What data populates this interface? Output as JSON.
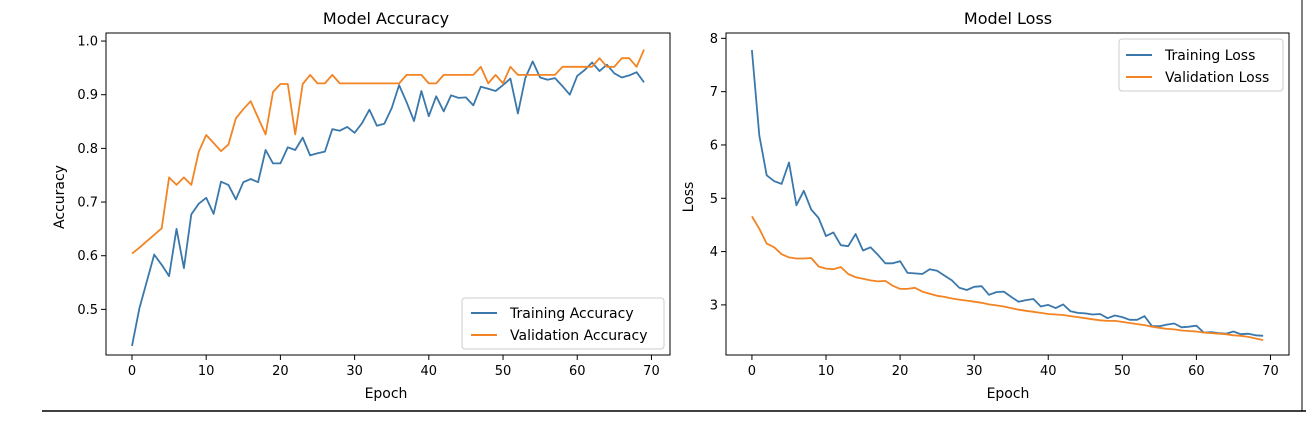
{
  "colors": {
    "training": "#3a78ab",
    "validation": "#f28424"
  },
  "chart_data": [
    {
      "type": "line",
      "title": "Model Accuracy",
      "xlabel": "Epoch",
      "ylabel": "Accuracy",
      "xlim": [
        -3.5,
        72.5
      ],
      "ylim": [
        0.415,
        1.015
      ],
      "xticks": [
        0,
        10,
        20,
        30,
        40,
        50,
        60,
        70
      ],
      "yticks": [
        0.5,
        0.6,
        0.7,
        0.8,
        0.9,
        1.0
      ],
      "ytick_labels": [
        "0.5",
        "0.6",
        "0.7",
        "0.8",
        "0.9",
        "1.0"
      ],
      "legend_position": "lower-right",
      "series": [
        {
          "name": "Training Accuracy",
          "color_key": "training",
          "values": [
            0.432,
            0.502,
            0.552,
            0.602,
            0.583,
            0.562,
            0.65,
            0.577,
            0.677,
            0.697,
            0.708,
            0.678,
            0.738,
            0.732,
            0.705,
            0.737,
            0.743,
            0.737,
            0.797,
            0.772,
            0.772,
            0.802,
            0.797,
            0.82,
            0.787,
            0.791,
            0.794,
            0.836,
            0.833,
            0.84,
            0.829,
            0.847,
            0.872,
            0.842,
            0.846,
            0.875,
            0.918,
            0.886,
            0.851,
            0.907,
            0.86,
            0.897,
            0.869,
            0.899,
            0.894,
            0.895,
            0.88,
            0.915,
            0.911,
            0.907,
            0.918,
            0.93,
            0.865,
            0.931,
            0.962,
            0.932,
            0.928,
            0.931,
            0.916,
            0.9,
            0.935,
            0.946,
            0.96,
            0.944,
            0.956,
            0.94,
            0.932,
            0.936,
            0.942,
            0.923
          ]
        },
        {
          "name": "Validation Accuracy",
          "color_key": "validation",
          "values": [
            0.604,
            0.615,
            0.627,
            0.639,
            0.651,
            0.746,
            0.732,
            0.746,
            0.732,
            0.794,
            0.825,
            0.81,
            0.795,
            0.807,
            0.856,
            0.873,
            0.888,
            0.857,
            0.826,
            0.905,
            0.92,
            0.92,
            0.826,
            0.92,
            0.937,
            0.921,
            0.921,
            0.937,
            0.921,
            0.921,
            0.921,
            0.921,
            0.921,
            0.921,
            0.921,
            0.921,
            0.921,
            0.937,
            0.937,
            0.937,
            0.921,
            0.921,
            0.937,
            0.937,
            0.937,
            0.937,
            0.937,
            0.952,
            0.921,
            0.937,
            0.921,
            0.952,
            0.937,
            0.937,
            0.937,
            0.937,
            0.937,
            0.937,
            0.952,
            0.952,
            0.952,
            0.952,
            0.952,
            0.968,
            0.952,
            0.952,
            0.968,
            0.968,
            0.952,
            0.984
          ]
        }
      ]
    },
    {
      "type": "line",
      "title": "Model Loss",
      "xlabel": "Epoch",
      "ylabel": "Loss",
      "xlim": [
        -3.5,
        72.5
      ],
      "ylim": [
        2.06,
        8.1
      ],
      "xticks": [
        0,
        10,
        20,
        30,
        40,
        50,
        60,
        70
      ],
      "yticks": [
        3,
        4,
        5,
        6,
        7,
        8
      ],
      "ytick_labels": [
        "3",
        "4",
        "5",
        "6",
        "7",
        "8"
      ],
      "legend_position": "upper-right",
      "series": [
        {
          "name": "Training Loss",
          "color_key": "training",
          "values": [
            7.78,
            6.18,
            5.43,
            5.32,
            5.27,
            5.67,
            4.87,
            5.14,
            4.79,
            4.63,
            4.29,
            4.36,
            4.12,
            4.1,
            4.33,
            4.02,
            4.08,
            3.94,
            3.78,
            3.78,
            3.82,
            3.6,
            3.59,
            3.58,
            3.67,
            3.64,
            3.55,
            3.46,
            3.32,
            3.28,
            3.34,
            3.35,
            3.19,
            3.24,
            3.25,
            3.15,
            3.06,
            3.09,
            3.11,
            2.97,
            3.0,
            2.94,
            3.01,
            2.88,
            2.85,
            2.84,
            2.82,
            2.83,
            2.75,
            2.8,
            2.77,
            2.72,
            2.72,
            2.79,
            2.6,
            2.6,
            2.63,
            2.65,
            2.58,
            2.59,
            2.61,
            2.48,
            2.49,
            2.47,
            2.46,
            2.5,
            2.45,
            2.46,
            2.43,
            2.42
          ]
        },
        {
          "name": "Validation Loss",
          "color_key": "validation",
          "values": [
            4.66,
            4.43,
            4.15,
            4.08,
            3.95,
            3.89,
            3.87,
            3.87,
            3.88,
            3.72,
            3.68,
            3.67,
            3.71,
            3.58,
            3.52,
            3.49,
            3.46,
            3.44,
            3.45,
            3.36,
            3.3,
            3.3,
            3.32,
            3.25,
            3.21,
            3.17,
            3.15,
            3.12,
            3.1,
            3.08,
            3.06,
            3.04,
            3.01,
            2.99,
            2.97,
            2.94,
            2.91,
            2.89,
            2.87,
            2.85,
            2.83,
            2.82,
            2.81,
            2.79,
            2.77,
            2.75,
            2.73,
            2.71,
            2.7,
            2.7,
            2.68,
            2.66,
            2.64,
            2.62,
            2.59,
            2.57,
            2.55,
            2.54,
            2.52,
            2.51,
            2.5,
            2.48,
            2.47,
            2.46,
            2.45,
            2.43,
            2.42,
            2.4,
            2.37,
            2.34
          ]
        }
      ]
    }
  ]
}
